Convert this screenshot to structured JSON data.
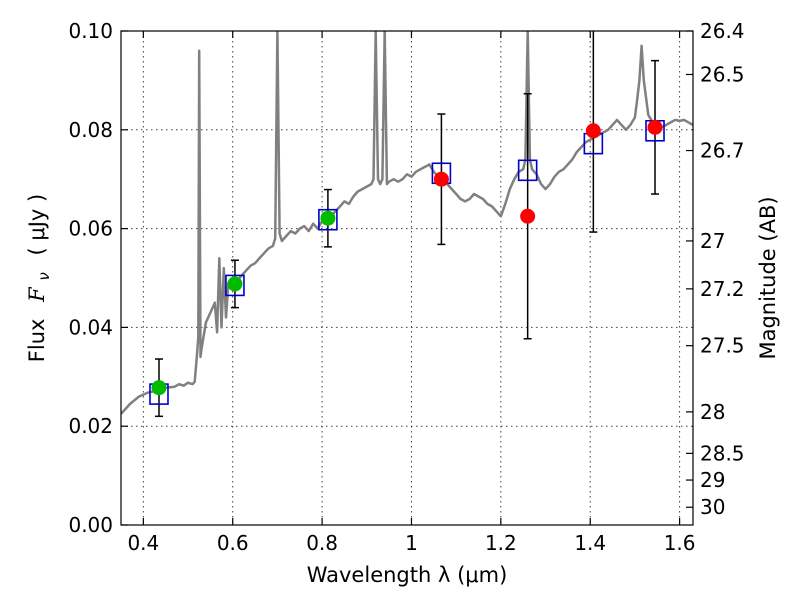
{
  "chart_data": {
    "type": "scatter",
    "xlabel": "Wavelength  λ (μm)",
    "ylabel": "Flux  F_ν  ( μJy )",
    "ylabel_parts": {
      "flux": "Flux",
      "symbol": "F",
      "sub": "ν",
      "unit": "( μJy )"
    },
    "ylabel_right": "Magnitude (AB)",
    "xlim": [
      0.35,
      1.63
    ],
    "ylim": [
      0.0,
      0.1
    ],
    "grid": true,
    "x_ticks": [
      {
        "value": 0.4,
        "label": "0.4"
      },
      {
        "value": 0.6,
        "label": "0.6"
      },
      {
        "value": 0.8,
        "label": "0.8"
      },
      {
        "value": 1.0,
        "label": "1"
      },
      {
        "value": 1.2,
        "label": "1.2"
      },
      {
        "value": 1.4,
        "label": "1.4"
      },
      {
        "value": 1.6,
        "label": "1.6"
      }
    ],
    "y_ticks": [
      {
        "value": 0.0,
        "label": "0.00"
      },
      {
        "value": 0.02,
        "label": "0.02"
      },
      {
        "value": 0.04,
        "label": "0.04"
      },
      {
        "value": 0.06,
        "label": "0.06"
      },
      {
        "value": 0.08,
        "label": "0.08"
      },
      {
        "value": 0.1,
        "label": "0.10"
      }
    ],
    "mag_ticks": [
      {
        "flux": 0.1,
        "label": "26.4"
      },
      {
        "flux": 0.0912,
        "label": "26.5"
      },
      {
        "flux": 0.0758,
        "label": "26.7"
      },
      {
        "flux": 0.0575,
        "label": "27"
      },
      {
        "flux": 0.0478,
        "label": "27.2"
      },
      {
        "flux": 0.0363,
        "label": "27.5"
      },
      {
        "flux": 0.0229,
        "label": "28"
      },
      {
        "flux": 0.0145,
        "label": "28.5"
      },
      {
        "flux": 0.0091,
        "label": "29"
      },
      {
        "flux": 0.0036,
        "label": "30"
      }
    ],
    "series": [
      {
        "name": "template-spectrum",
        "kind": "line",
        "color": "#808080",
        "points": [
          [
            0.35,
            0.0225
          ],
          [
            0.37,
            0.0245
          ],
          [
            0.39,
            0.026
          ],
          [
            0.41,
            0.0268
          ],
          [
            0.43,
            0.0272
          ],
          [
            0.45,
            0.0278
          ],
          [
            0.47,
            0.028
          ],
          [
            0.48,
            0.0285
          ],
          [
            0.49,
            0.0282
          ],
          [
            0.5,
            0.0288
          ],
          [
            0.51,
            0.0285
          ],
          [
            0.515,
            0.029
          ],
          [
            0.52,
            0.0345
          ],
          [
            0.523,
            0.038
          ],
          [
            0.525,
            0.096
          ],
          [
            0.528,
            0.034
          ],
          [
            0.53,
            0.0355
          ],
          [
            0.54,
            0.041
          ],
          [
            0.55,
            0.043
          ],
          [
            0.56,
            0.045
          ],
          [
            0.565,
            0.039
          ],
          [
            0.57,
            0.054
          ],
          [
            0.575,
            0.04
          ],
          [
            0.58,
            0.052
          ],
          [
            0.585,
            0.042
          ],
          [
            0.59,
            0.049
          ],
          [
            0.6,
            0.048
          ],
          [
            0.61,
            0.0495
          ],
          [
            0.62,
            0.0505
          ],
          [
            0.63,
            0.0515
          ],
          [
            0.64,
            0.0525
          ],
          [
            0.65,
            0.053
          ],
          [
            0.66,
            0.054
          ],
          [
            0.67,
            0.055
          ],
          [
            0.68,
            0.056
          ],
          [
            0.69,
            0.0565
          ],
          [
            0.695,
            0.058
          ],
          [
            0.7,
            0.1
          ],
          [
            0.705,
            0.059
          ],
          [
            0.71,
            0.0575
          ],
          [
            0.72,
            0.0585
          ],
          [
            0.73,
            0.0595
          ],
          [
            0.74,
            0.059
          ],
          [
            0.75,
            0.06
          ],
          [
            0.76,
            0.0605
          ],
          [
            0.77,
            0.0595
          ],
          [
            0.78,
            0.061
          ],
          [
            0.79,
            0.06
          ],
          [
            0.8,
            0.0615
          ],
          [
            0.81,
            0.062
          ],
          [
            0.82,
            0.0625
          ],
          [
            0.83,
            0.0635
          ],
          [
            0.84,
            0.0645
          ],
          [
            0.85,
            0.0655
          ],
          [
            0.86,
            0.065
          ],
          [
            0.87,
            0.0665
          ],
          [
            0.88,
            0.0675
          ],
          [
            0.89,
            0.068
          ],
          [
            0.9,
            0.0685
          ],
          [
            0.91,
            0.069
          ],
          [
            0.915,
            0.07
          ],
          [
            0.92,
            0.1
          ],
          [
            0.925,
            0.07
          ],
          [
            0.93,
            0.069
          ],
          [
            0.935,
            0.07
          ],
          [
            0.94,
            0.1
          ],
          [
            0.945,
            0.069
          ],
          [
            0.95,
            0.0695
          ],
          [
            0.96,
            0.07
          ],
          [
            0.97,
            0.0695
          ],
          [
            0.98,
            0.07
          ],
          [
            0.99,
            0.071
          ],
          [
            1.0,
            0.0705
          ],
          [
            1.01,
            0.0715
          ],
          [
            1.02,
            0.072
          ],
          [
            1.03,
            0.0725
          ],
          [
            1.04,
            0.073
          ],
          [
            1.05,
            0.0715
          ],
          [
            1.06,
            0.0705
          ],
          [
            1.07,
            0.0695
          ],
          [
            1.08,
            0.069
          ],
          [
            1.09,
            0.068
          ],
          [
            1.1,
            0.067
          ],
          [
            1.11,
            0.066
          ],
          [
            1.12,
            0.0655
          ],
          [
            1.13,
            0.066
          ],
          [
            1.14,
            0.067
          ],
          [
            1.15,
            0.0665
          ],
          [
            1.16,
            0.066
          ],
          [
            1.17,
            0.065
          ],
          [
            1.18,
            0.0645
          ],
          [
            1.19,
            0.0635
          ],
          [
            1.2,
            0.0625
          ],
          [
            1.21,
            0.065
          ],
          [
            1.22,
            0.068
          ],
          [
            1.23,
            0.07
          ],
          [
            1.24,
            0.0715
          ],
          [
            1.25,
            0.072
          ],
          [
            1.255,
            0.074
          ],
          [
            1.26,
            0.1
          ],
          [
            1.265,
            0.074
          ],
          [
            1.27,
            0.072
          ],
          [
            1.28,
            0.071
          ],
          [
            1.29,
            0.069
          ],
          [
            1.3,
            0.068
          ],
          [
            1.31,
            0.069
          ],
          [
            1.32,
            0.0705
          ],
          [
            1.33,
            0.0715
          ],
          [
            1.34,
            0.072
          ],
          [
            1.35,
            0.073
          ],
          [
            1.36,
            0.074
          ],
          [
            1.37,
            0.0755
          ],
          [
            1.38,
            0.0765
          ],
          [
            1.39,
            0.0775
          ],
          [
            1.4,
            0.078
          ],
          [
            1.41,
            0.0785
          ],
          [
            1.42,
            0.079
          ],
          [
            1.43,
            0.0795
          ],
          [
            1.44,
            0.08
          ],
          [
            1.45,
            0.081
          ],
          [
            1.46,
            0.082
          ],
          [
            1.47,
            0.081
          ],
          [
            1.48,
            0.08
          ],
          [
            1.49,
            0.081
          ],
          [
            1.5,
            0.0825
          ],
          [
            1.505,
            0.086
          ],
          [
            1.51,
            0.09
          ],
          [
            1.515,
            0.097
          ],
          [
            1.52,
            0.09
          ],
          [
            1.53,
            0.083
          ],
          [
            1.54,
            0.0815
          ],
          [
            1.55,
            0.081
          ],
          [
            1.56,
            0.0805
          ],
          [
            1.57,
            0.081
          ],
          [
            1.58,
            0.0815
          ],
          [
            1.59,
            0.082
          ],
          [
            1.6,
            0.0818
          ],
          [
            1.61,
            0.082
          ],
          [
            1.62,
            0.0815
          ],
          [
            1.63,
            0.081
          ]
        ]
      },
      {
        "name": "model-photometry",
        "kind": "square",
        "color": "#0000cc",
        "points": [
          [
            0.435,
            0.0265
          ],
          [
            0.605,
            0.0485
          ],
          [
            0.813,
            0.0618
          ],
          [
            1.067,
            0.0712
          ],
          [
            1.26,
            0.0718
          ],
          [
            1.407,
            0.0772
          ],
          [
            1.545,
            0.0798
          ]
        ]
      },
      {
        "name": "observed-detections",
        "kind": "circle",
        "color": "#00bb00",
        "points": [
          {
            "x": 0.435,
            "y": 0.0278,
            "err": 0.0058
          },
          {
            "x": 0.605,
            "y": 0.0488,
            "err": 0.0048
          },
          {
            "x": 0.813,
            "y": 0.0621,
            "err": 0.0058
          }
        ]
      },
      {
        "name": "observed-nir",
        "kind": "circle",
        "color": "#ff0000",
        "points": [
          {
            "x": 1.067,
            "y": 0.07,
            "err": 0.0132
          },
          {
            "x": 1.26,
            "y": 0.0625,
            "err": 0.0248
          },
          {
            "x": 1.407,
            "y": 0.0798,
            "err": 0.0205
          },
          {
            "x": 1.545,
            "y": 0.0805,
            "err": 0.0135
          }
        ]
      }
    ]
  }
}
